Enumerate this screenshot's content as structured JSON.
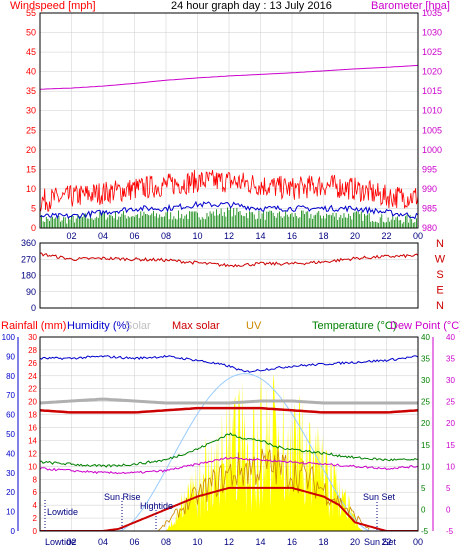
{
  "header": {
    "left_title": "Windspeed [mph]",
    "center_title": "24 hour graph day : 13 July 2016",
    "right_title": "Barometer [hpa]"
  },
  "x_ticks": [
    "02",
    "04",
    "06",
    "08",
    "10",
    "12",
    "14",
    "16",
    "18",
    "20",
    "22",
    "00"
  ],
  "panel1": {
    "windspeed_ticks": [
      "55",
      "50",
      "45",
      "40",
      "35",
      "30",
      "25",
      "20",
      "15",
      "10",
      "5",
      "0"
    ],
    "barometer_ticks": [
      "1035",
      "1030",
      "1025",
      "1020",
      "1015",
      "1010",
      "1005",
      "1000",
      "995",
      "990",
      "985",
      "980"
    ]
  },
  "panel2": {
    "dir_ticks": [
      "360",
      "270",
      "180",
      "90",
      "0"
    ],
    "compass": [
      "N",
      "W",
      "S",
      "E",
      "N"
    ]
  },
  "panel3": {
    "labels": {
      "rainfall": "Rainfall (mm)",
      "humidity": "Humidity (%)",
      "solar": "Solar",
      "max_solar": "Max solar",
      "uv": "UV",
      "temperature": "Temperature (°C)",
      "dew_point": "Dew Point (°C)"
    },
    "humidity_ticks": [
      "100",
      "90",
      "80",
      "70",
      "60",
      "50",
      "40",
      "30",
      "20",
      "10",
      "0"
    ],
    "rain_ticks": [
      "30",
      "28",
      "26",
      "24",
      "22",
      "20",
      "18",
      "16",
      "14",
      "12",
      "10",
      "8",
      "6",
      "4",
      "2",
      "0"
    ],
    "temp_ticks": [
      "40",
      "35",
      "30",
      "25",
      "20",
      "15",
      "10",
      "5",
      "0",
      "-5"
    ],
    "dew_ticks": [
      "40",
      "35",
      "30",
      "25",
      "20",
      "15",
      "10",
      "5",
      "0",
      "-5"
    ],
    "annotations": {
      "lowtide_1": "Lowtide",
      "sunrise": "Sun Rise",
      "hightide": "Hightide",
      "sunset": "Sun Set",
      "lowtide_axis": "Lowtide",
      "sunset_axis": "Sun Set"
    }
  },
  "colors": {
    "frame": "#000000",
    "windspeed_label": "#ff0000",
    "barometer": "#cc00cc",
    "gust": "#ff0000",
    "avg_wind": "#0000cc",
    "wind_green": "#008000",
    "direction": "#cc0000",
    "rain_axis": "#ff0000",
    "humidity_axis": "#0000cc",
    "solar_label": "#c0c0c0",
    "max_solar": "#cc0000",
    "uv": "#cc8800",
    "temperature": "#008000",
    "dew_point": "#cc00cc",
    "solar_fill": "#ffff00",
    "max_solar_curve": "#99ccff",
    "grid": "#cccccc"
  },
  "chart_data": [
    {
      "type": "line",
      "title": "24 hour graph day : 13 July 2016",
      "xlabel": "",
      "x_ticks": [
        "02",
        "04",
        "06",
        "08",
        "10",
        "12",
        "14",
        "16",
        "18",
        "20",
        "22",
        "00"
      ],
      "y_left_label": "Windspeed [mph]",
      "y_left_range": [
        0,
        55
      ],
      "y_right_label": "Barometer [hpa]",
      "y_right_range": [
        980,
        1035
      ],
      "series": [
        {
          "axis": "right",
          "hours": [
            0,
            2,
            4,
            6,
            8,
            10,
            12,
            14,
            16,
            18,
            20,
            22,
            24
          ],
          "values": [
            1015.5,
            1015.8,
            1016.3,
            1017.0,
            1017.8,
            1018.4,
            1018.9,
            1019.3,
            1019.7,
            1020.2,
            1020.7,
            1021.1,
            1021.6
          ]
        },
        {
          "axis": "left",
          "hours": [
            0,
            2,
            4,
            6,
            8,
            10,
            12,
            14,
            16,
            18,
            20,
            22,
            24
          ],
          "values": [
            7,
            8,
            9,
            10,
            11,
            12,
            12,
            11,
            10,
            11,
            10,
            8,
            8
          ]
        },
        {
          "axis": "left",
          "hours": [
            0,
            2,
            4,
            6,
            8,
            10,
            12,
            14,
            16,
            18,
            20,
            22,
            24
          ],
          "values": [
            3,
            3,
            4,
            5,
            5,
            6,
            6,
            5,
            5,
            5,
            5,
            4,
            3
          ]
        },
        {
          "axis": "left",
          "hours": [
            0,
            2,
            4,
            6,
            8,
            10,
            12,
            14,
            16,
            18,
            20,
            22,
            24
          ],
          "values": [
            1,
            1,
            2,
            2,
            2,
            2,
            3,
            2,
            2,
            2,
            2,
            1,
            1
          ]
        }
      ]
    },
    {
      "type": "line",
      "y_left_range": [
        0,
        360
      ],
      "y_right_ticks": [
        "N",
        "W",
        "S",
        "E",
        "N"
      ],
      "series": [
        {
          "hours": [
            0,
            2,
            4,
            6,
            8,
            10,
            12,
            14,
            16,
            18,
            20,
            22,
            24
          ],
          "values": [
            300,
            270,
            275,
            270,
            265,
            250,
            235,
            245,
            245,
            255,
            275,
            285,
            290
          ]
        }
      ]
    },
    {
      "type": "line",
      "y_humidity_range": [
        0,
        100
      ],
      "y_rain_range": [
        0,
        30
      ],
      "y_temp_range": [
        -5,
        40
      ],
      "series": [
        {
          "axis": "humidity",
          "hours": [
            0,
            2,
            4,
            6,
            8,
            10,
            12,
            13,
            14,
            15,
            16,
            18,
            20,
            22,
            24
          ],
          "values": [
            89,
            89,
            90,
            89,
            90,
            88,
            85,
            82,
            83,
            84,
            85,
            86,
            87,
            88,
            90
          ]
        },
        {
          "axis": "humidity",
          "hours": [
            0,
            2,
            4,
            6,
            8,
            10,
            12,
            14,
            16,
            18,
            20,
            22,
            24
          ],
          "values": [
            66,
            67,
            68,
            67,
            66,
            66,
            66,
            67,
            67,
            66,
            66,
            66,
            66
          ]
        },
        {
          "axis": "temperature",
          "hours": [
            0,
            2,
            4,
            6,
            8,
            10,
            12,
            14,
            16,
            18,
            20,
            22,
            24
          ],
          "values": [
            23.0,
            22.5,
            22.5,
            22.5,
            23.0,
            23.5,
            23.5,
            23.5,
            23.0,
            22.5,
            22.5,
            22.5,
            23.0
          ]
        },
        {
          "axis": "temperature",
          "hours": [
            0,
            2,
            4,
            6,
            8,
            10,
            12,
            13,
            14,
            15,
            16,
            18,
            20,
            22,
            24
          ],
          "values": [
            11.0,
            10.5,
            10.0,
            10.5,
            11.5,
            14.0,
            17.5,
            16.5,
            16.0,
            14.5,
            14.0,
            13.0,
            12.0,
            11.5,
            11.5
          ]
        },
        {
          "axis": "temperature",
          "hours": [
            0,
            2,
            4,
            6,
            8,
            10,
            12,
            14,
            16,
            18,
            20,
            22,
            24
          ],
          "values": [
            9.5,
            9.0,
            8.5,
            8.5,
            9.0,
            10.5,
            12.0,
            11.5,
            11.0,
            10.5,
            10.0,
            9.5,
            10.0
          ]
        },
        {
          "axis": "temperature",
          "hours": [
            0,
            4,
            5,
            6,
            8,
            10,
            12,
            14,
            16,
            18,
            19,
            20,
            22,
            24
          ],
          "values": [
            -5,
            -5,
            -4.5,
            -3,
            0,
            3,
            5,
            5,
            5,
            3,
            1,
            -3,
            -5,
            -5
          ]
        }
      ]
    }
  ]
}
